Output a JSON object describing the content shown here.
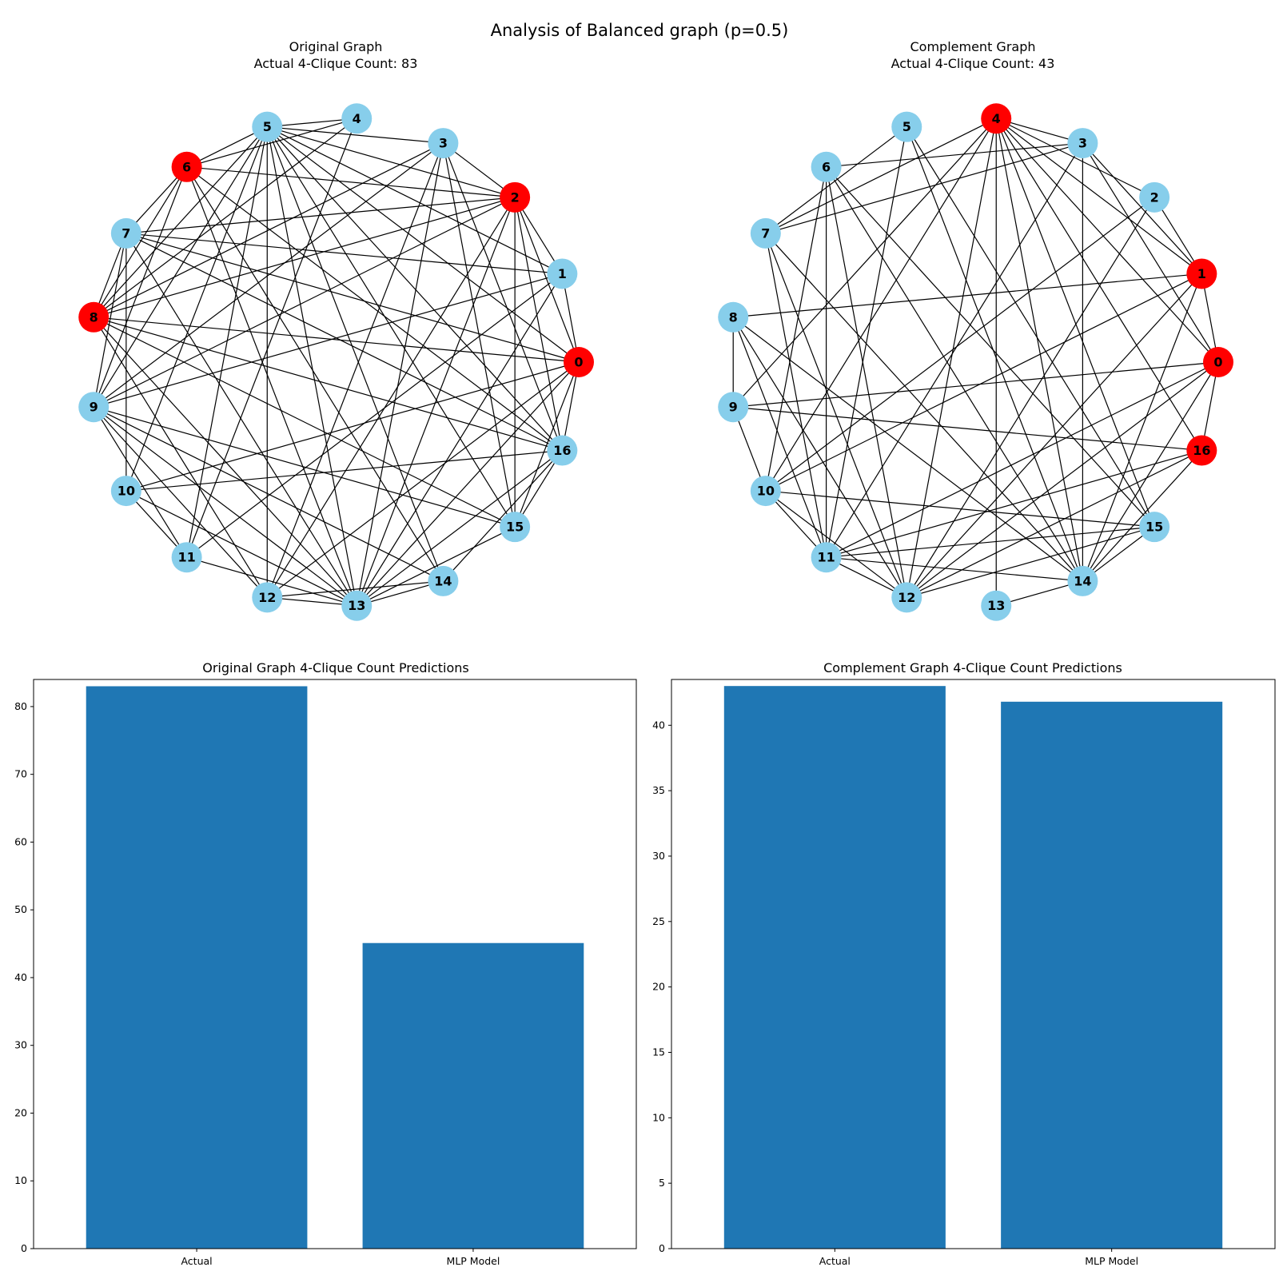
{
  "figure": {
    "suptitle": "Analysis of Balanced graph (p=0.5)"
  },
  "colors": {
    "node_default": "#87ceeb",
    "node_highlight": "#ff0000",
    "edge": "#000000",
    "bar": "#1f77b4"
  },
  "chart_data": [
    {
      "type": "network",
      "title_line1": "Original Graph",
      "title_line2": "Actual 4-Clique Count: 83",
      "nodes": [
        "0",
        "1",
        "2",
        "3",
        "4",
        "5",
        "6",
        "7",
        "8",
        "9",
        "10",
        "11",
        "12",
        "13",
        "14",
        "15",
        "16"
      ],
      "highlighted_nodes": [
        "0",
        "2",
        "6",
        "8"
      ],
      "edges": [
        [
          0,
          1
        ],
        [
          0,
          2
        ],
        [
          0,
          5
        ],
        [
          0,
          7
        ],
        [
          0,
          8
        ],
        [
          0,
          10
        ],
        [
          0,
          12
        ],
        [
          0,
          13
        ],
        [
          0,
          15
        ],
        [
          0,
          16
        ],
        [
          1,
          2
        ],
        [
          1,
          5
        ],
        [
          1,
          7
        ],
        [
          1,
          9
        ],
        [
          1,
          11
        ],
        [
          1,
          13
        ],
        [
          2,
          3
        ],
        [
          2,
          5
        ],
        [
          2,
          6
        ],
        [
          2,
          7
        ],
        [
          2,
          8
        ],
        [
          2,
          9
        ],
        [
          2,
          12
        ],
        [
          2,
          13
        ],
        [
          2,
          15
        ],
        [
          2,
          16
        ],
        [
          3,
          5
        ],
        [
          3,
          8
        ],
        [
          3,
          9
        ],
        [
          3,
          12
        ],
        [
          3,
          13
        ],
        [
          3,
          15
        ],
        [
          3,
          16
        ],
        [
          4,
          5
        ],
        [
          4,
          6
        ],
        [
          4,
          8
        ],
        [
          4,
          11
        ],
        [
          5,
          6
        ],
        [
          5,
          8
        ],
        [
          5,
          9
        ],
        [
          5,
          10
        ],
        [
          5,
          11
        ],
        [
          5,
          12
        ],
        [
          5,
          13
        ],
        [
          5,
          14
        ],
        [
          5,
          15
        ],
        [
          5,
          16
        ],
        [
          6,
          7
        ],
        [
          6,
          8
        ],
        [
          6,
          9
        ],
        [
          6,
          13
        ],
        [
          6,
          14
        ],
        [
          6,
          16
        ],
        [
          7,
          8
        ],
        [
          7,
          9
        ],
        [
          7,
          10
        ],
        [
          7,
          13
        ],
        [
          7,
          16
        ],
        [
          8,
          12
        ],
        [
          8,
          13
        ],
        [
          8,
          15
        ],
        [
          8,
          16
        ],
        [
          9,
          11
        ],
        [
          9,
          12
        ],
        [
          9,
          13
        ],
        [
          9,
          14
        ],
        [
          9,
          15
        ],
        [
          10,
          11
        ],
        [
          10,
          13
        ],
        [
          10,
          16
        ],
        [
          11,
          13
        ],
        [
          12,
          13
        ],
        [
          12,
          14
        ],
        [
          13,
          14
        ],
        [
          13,
          15
        ],
        [
          13,
          16
        ],
        [
          14,
          16
        ],
        [
          15,
          16
        ]
      ]
    },
    {
      "type": "network",
      "title_line1": "Complement Graph",
      "title_line2": "Actual 4-Clique Count: 43",
      "nodes": [
        "0",
        "1",
        "2",
        "3",
        "4",
        "5",
        "6",
        "7",
        "8",
        "9",
        "10",
        "11",
        "12",
        "13",
        "14",
        "15",
        "16"
      ],
      "highlighted_nodes": [
        "0",
        "1",
        "4",
        "16"
      ],
      "edges": [
        [
          0,
          1
        ],
        [
          0,
          3
        ],
        [
          0,
          4
        ],
        [
          0,
          9
        ],
        [
          0,
          11
        ],
        [
          0,
          12
        ],
        [
          0,
          14
        ],
        [
          0,
          16
        ],
        [
          1,
          2
        ],
        [
          1,
          3
        ],
        [
          1,
          4
        ],
        [
          1,
          8
        ],
        [
          1,
          10
        ],
        [
          1,
          12
        ],
        [
          1,
          14
        ],
        [
          2,
          4
        ],
        [
          2,
          10
        ],
        [
          2,
          12
        ],
        [
          3,
          4
        ],
        [
          3,
          6
        ],
        [
          3,
          7
        ],
        [
          3,
          11
        ],
        [
          3,
          14
        ],
        [
          4,
          7
        ],
        [
          4,
          9
        ],
        [
          4,
          10
        ],
        [
          4,
          12
        ],
        [
          4,
          13
        ],
        [
          4,
          14
        ],
        [
          4,
          15
        ],
        [
          4,
          16
        ],
        [
          5,
          7
        ],
        [
          5,
          11
        ],
        [
          5,
          14
        ],
        [
          5,
          15
        ],
        [
          6,
          10
        ],
        [
          6,
          11
        ],
        [
          6,
          12
        ],
        [
          6,
          14
        ],
        [
          6,
          15
        ],
        [
          7,
          11
        ],
        [
          7,
          12
        ],
        [
          7,
          14
        ],
        [
          8,
          9
        ],
        [
          8,
          11
        ],
        [
          8,
          12
        ],
        [
          8,
          14
        ],
        [
          9,
          16
        ],
        [
          9,
          10
        ],
        [
          10,
          11
        ],
        [
          10,
          12
        ],
        [
          10,
          15
        ],
        [
          11,
          12
        ],
        [
          11,
          14
        ],
        [
          11,
          15
        ],
        [
          11,
          16
        ],
        [
          12,
          15
        ],
        [
          12,
          16
        ],
        [
          13,
          14
        ],
        [
          14,
          15
        ],
        [
          14,
          16
        ]
      ]
    },
    {
      "type": "bar",
      "title": "Original Graph 4-Clique Count Predictions",
      "categories": [
        "Actual",
        "MLP Model"
      ],
      "values": [
        83,
        45.1
      ],
      "ylim": [
        0,
        84
      ],
      "yticks": [
        0,
        10,
        20,
        30,
        40,
        50,
        60,
        70,
        80
      ]
    },
    {
      "type": "bar",
      "title": "Complement Graph 4-Clique Count Predictions",
      "categories": [
        "Actual",
        "MLP Model"
      ],
      "values": [
        43,
        41.8
      ],
      "ylim": [
        0,
        43.5
      ],
      "yticks": [
        0,
        5,
        10,
        15,
        20,
        25,
        30,
        35,
        40
      ]
    }
  ]
}
